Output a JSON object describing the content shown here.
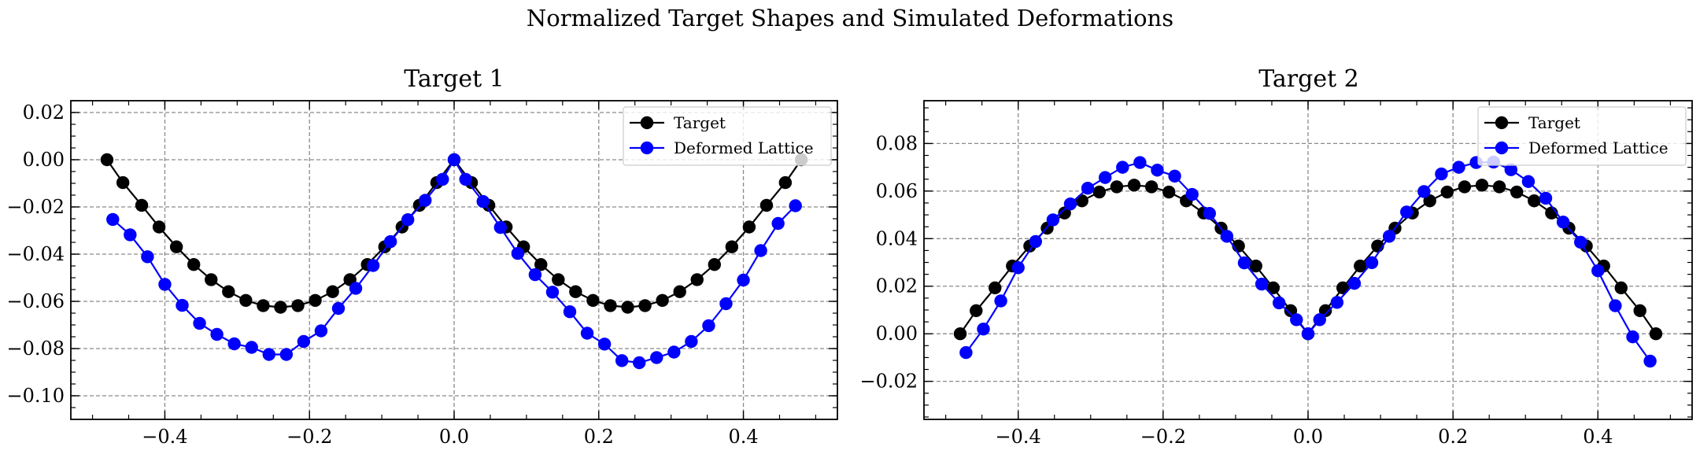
{
  "figure": {
    "suptitle": "Normalized Target Shapes and Simulated Deformations"
  },
  "chart_data": [
    {
      "type": "line",
      "title": "Target 1",
      "xlabel": "",
      "ylabel": "",
      "xlim": [
        -0.53,
        0.53
      ],
      "ylim": [
        -0.11,
        0.025
      ],
      "xticks": [
        -0.4,
        -0.2,
        0.0,
        0.2,
        0.4
      ],
      "xtick_labels": [
        "−0.4",
        "−0.2",
        "0.0",
        "0.2",
        "0.4"
      ],
      "yticks": [
        -0.1,
        -0.08,
        -0.06,
        -0.04,
        -0.02,
        0.0,
        0.02
      ],
      "ytick_labels": [
        "−0.10",
        "−0.08",
        "−0.06",
        "−0.04",
        "−0.02",
        "0.00",
        "0.02"
      ],
      "grid": true,
      "legend_position": "top-right",
      "series": [
        {
          "name": "Target",
          "color": "#000000",
          "x": [
            -0.48,
            -0.458,
            -0.432,
            -0.408,
            -0.384,
            -0.36,
            -0.336,
            -0.312,
            -0.288,
            -0.264,
            -0.24,
            -0.216,
            -0.192,
            -0.168,
            -0.144,
            -0.12,
            -0.096,
            -0.072,
            -0.048,
            -0.024,
            0.0,
            0.024,
            0.048,
            0.072,
            0.096,
            0.12,
            0.144,
            0.168,
            0.192,
            0.216,
            0.24,
            0.264,
            0.288,
            0.312,
            0.336,
            0.36,
            0.384,
            0.408,
            0.432,
            0.458,
            0.48
          ],
          "y": [
            0.0,
            -0.0097,
            -0.0193,
            -0.0285,
            -0.0369,
            -0.0444,
            -0.0508,
            -0.0559,
            -0.0596,
            -0.0618,
            -0.0625,
            -0.0618,
            -0.0596,
            -0.0559,
            -0.0508,
            -0.0444,
            -0.0369,
            -0.0285,
            -0.0193,
            -0.0097,
            0.0,
            -0.0097,
            -0.0193,
            -0.0285,
            -0.0369,
            -0.0444,
            -0.0508,
            -0.0559,
            -0.0596,
            -0.0618,
            -0.0625,
            -0.0618,
            -0.0596,
            -0.0559,
            -0.0508,
            -0.0444,
            -0.0369,
            -0.0285,
            -0.0193,
            -0.0097,
            0.0
          ]
        },
        {
          "name": "Deformed Lattice",
          "color": "#0000ff",
          "x": [
            -0.472,
            -0.448,
            -0.424,
            -0.4,
            -0.376,
            -0.352,
            -0.328,
            -0.304,
            -0.28,
            -0.256,
            -0.232,
            -0.208,
            -0.184,
            -0.16,
            -0.136,
            -0.112,
            -0.088,
            -0.064,
            -0.04,
            -0.016,
            0.0,
            0.016,
            0.04,
            0.064,
            0.088,
            0.112,
            0.136,
            0.16,
            0.184,
            0.208,
            0.232,
            0.256,
            0.28,
            0.304,
            0.328,
            0.352,
            0.376,
            0.4,
            0.424,
            0.448,
            0.472
          ],
          "y": [
            -0.0253,
            -0.0318,
            -0.0411,
            -0.0528,
            -0.0617,
            -0.0693,
            -0.074,
            -0.078,
            -0.0795,
            -0.0825,
            -0.0825,
            -0.077,
            -0.0725,
            -0.063,
            -0.0545,
            -0.0448,
            -0.0347,
            -0.0254,
            -0.0172,
            -0.0083,
            0.0,
            -0.0083,
            -0.0177,
            -0.0287,
            -0.0397,
            -0.0487,
            -0.0561,
            -0.0644,
            -0.0735,
            -0.0781,
            -0.0851,
            -0.086,
            -0.0838,
            -0.0815,
            -0.077,
            -0.0703,
            -0.061,
            -0.051,
            -0.0385,
            -0.027,
            -0.0195
          ]
        }
      ]
    },
    {
      "type": "line",
      "title": "Target 2",
      "xlabel": "",
      "ylabel": "",
      "xlim": [
        -0.53,
        0.53
      ],
      "ylim": [
        -0.036,
        0.098
      ],
      "xticks": [
        -0.4,
        -0.2,
        0.0,
        0.2,
        0.4
      ],
      "xtick_labels": [
        "−0.4",
        "−0.2",
        "0.0",
        "0.2",
        "0.4"
      ],
      "yticks": [
        -0.02,
        0.0,
        0.02,
        0.04,
        0.06,
        0.08
      ],
      "ytick_labels": [
        "−0.02",
        "0.00",
        "0.02",
        "0.04",
        "0.06",
        "0.08"
      ],
      "grid": true,
      "legend_position": "top-right",
      "series": [
        {
          "name": "Target",
          "color": "#000000",
          "x": [
            -0.48,
            -0.458,
            -0.432,
            -0.408,
            -0.384,
            -0.36,
            -0.336,
            -0.312,
            -0.288,
            -0.264,
            -0.24,
            -0.216,
            -0.192,
            -0.168,
            -0.144,
            -0.12,
            -0.096,
            -0.072,
            -0.048,
            -0.024,
            0.0,
            0.024,
            0.048,
            0.072,
            0.096,
            0.12,
            0.144,
            0.168,
            0.192,
            0.216,
            0.24,
            0.264,
            0.288,
            0.312,
            0.336,
            0.36,
            0.384,
            0.408,
            0.432,
            0.458,
            0.48
          ],
          "y": [
            0.0,
            0.0097,
            0.0193,
            0.0285,
            0.0369,
            0.0444,
            0.0508,
            0.0559,
            0.0596,
            0.0618,
            0.0625,
            0.0618,
            0.0596,
            0.0559,
            0.0508,
            0.0444,
            0.0369,
            0.0285,
            0.0193,
            0.0097,
            0.0,
            0.0097,
            0.0193,
            0.0285,
            0.0369,
            0.0444,
            0.0508,
            0.0559,
            0.0596,
            0.0618,
            0.0625,
            0.0618,
            0.0596,
            0.0559,
            0.0508,
            0.0444,
            0.0369,
            0.0285,
            0.0193,
            0.0097,
            0.0
          ]
        },
        {
          "name": "Deformed Lattice",
          "color": "#0000ff",
          "x": [
            -0.472,
            -0.448,
            -0.424,
            -0.4,
            -0.376,
            -0.352,
            -0.328,
            -0.304,
            -0.28,
            -0.256,
            -0.232,
            -0.208,
            -0.184,
            -0.16,
            -0.136,
            -0.112,
            -0.088,
            -0.064,
            -0.04,
            -0.016,
            0.0,
            0.016,
            0.04,
            0.064,
            0.088,
            0.112,
            0.136,
            0.16,
            0.184,
            0.208,
            0.232,
            0.256,
            0.28,
            0.304,
            0.328,
            0.352,
            0.376,
            0.4,
            0.424,
            0.448,
            0.472
          ],
          "y": [
            -0.0079,
            0.002,
            0.0138,
            0.0278,
            0.0388,
            0.0479,
            0.0546,
            0.0612,
            0.0657,
            0.07,
            0.072,
            0.0688,
            0.0663,
            0.0586,
            0.0506,
            0.041,
            0.0298,
            0.0209,
            0.013,
            0.0059,
            0.0,
            0.0059,
            0.0132,
            0.0212,
            0.0299,
            0.041,
            0.0512,
            0.0598,
            0.0672,
            0.07,
            0.072,
            0.0722,
            0.069,
            0.064,
            0.057,
            0.047,
            0.0385,
            0.0265,
            0.0118,
            -0.0013,
            -0.0115
          ]
        }
      ]
    }
  ]
}
